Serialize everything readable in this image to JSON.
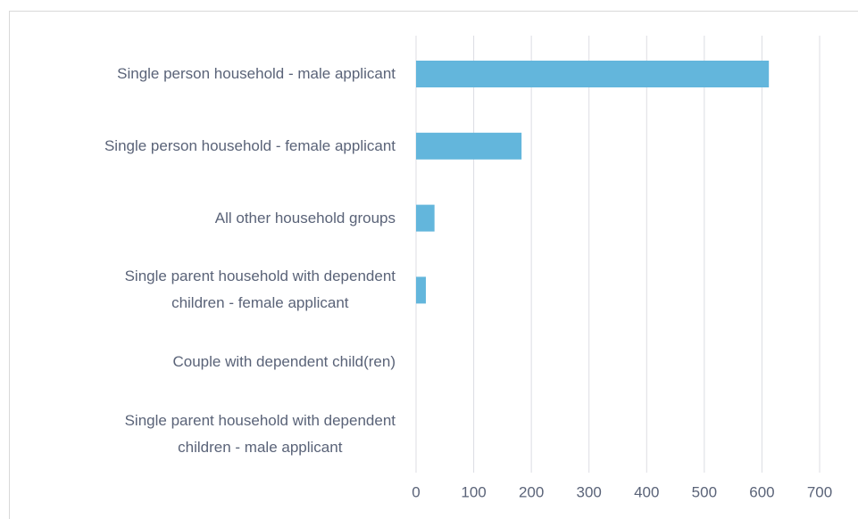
{
  "chart_data": {
    "type": "barh",
    "categories": [
      "Single person household - male applicant",
      "Single person household - female applicant",
      "All other household groups",
      "Single parent household with dependent\nchildren - female applicant",
      "Couple with dependent child(ren)",
      "Single parent household with dependent\nchildren - male applicant"
    ],
    "values": [
      612,
      183,
      32,
      17,
      0,
      0
    ],
    "color": "#63b6dc",
    "xlim": [
      0,
      700
    ],
    "xticks": [
      0,
      100,
      200,
      300,
      400,
      500,
      600,
      700
    ],
    "grid": true
  }
}
